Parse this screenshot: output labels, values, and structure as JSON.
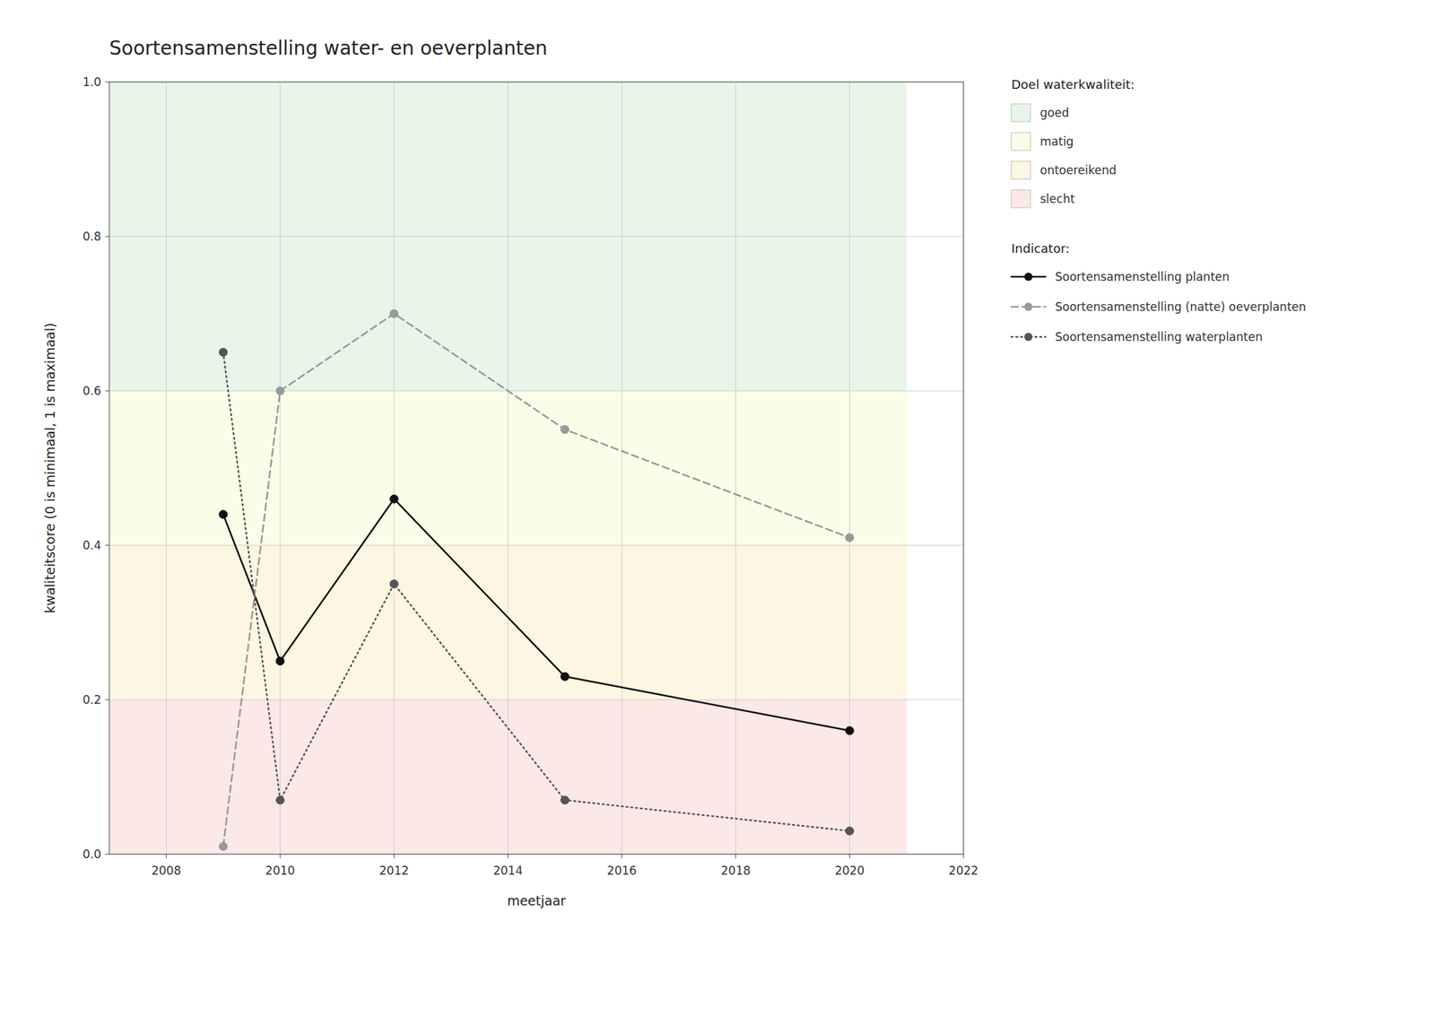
{
  "chart_data": {
    "type": "line",
    "title": "Soortensamenstelling water- en oeverplanten",
    "x_label": "meetjaar",
    "y_label": "kwaliteitscore (0 is minimaal, 1 is maximaal)",
    "x": [
      2009,
      2010,
      2012,
      2015,
      2020
    ],
    "series": [
      {
        "name": "Soortensamenstelling planten",
        "color": "#111111",
        "line_style": "solid",
        "marker": "circle",
        "values": [
          0.44,
          0.25,
          0.46,
          0.23,
          0.16
        ]
      },
      {
        "name": "Soortensamenstelling (natte) oeverplanten",
        "color": "#999999",
        "line_style": "dashed",
        "marker": "circle",
        "values": [
          0.01,
          0.6,
          0.7,
          0.55,
          0.41
        ]
      },
      {
        "name": "Soortensamenstelling waterplanten",
        "color": "#555555",
        "line_style": "dotted",
        "marker": "circle",
        "values": [
          0.65,
          0.07,
          0.35,
          0.07,
          0.03
        ]
      }
    ],
    "xlim": [
      2007,
      2022
    ],
    "ylim": [
      0,
      1
    ],
    "xticks": [
      2008,
      2010,
      2012,
      2014,
      2016,
      2018,
      2020,
      2022
    ],
    "yticks": [
      {
        "value": 0,
        "label": "0.0"
      },
      0.2,
      0.4,
      0.6,
      0.8,
      {
        "value": 1,
        "label": "1.0"
      }
    ],
    "grid": true,
    "legend": "right",
    "legend_title": "Indicator:",
    "bands_title": "Doel waterkwaliteit:",
    "band_x_end": 2021,
    "bands": [
      {
        "name": "goed",
        "color": "#e8f5e9",
        "from": 0.6,
        "to": 1.0
      },
      {
        "name": "matig",
        "color": "#fafde8",
        "from": 0.4,
        "to": 0.6
      },
      {
        "name": "ontoereikend",
        "color": "#fdf6e3",
        "from": 0.2,
        "to": 0.4
      },
      {
        "name": "slecht",
        "color": "#fde8e8",
        "from": 0.0,
        "to": 0.2
      }
    ]
  }
}
